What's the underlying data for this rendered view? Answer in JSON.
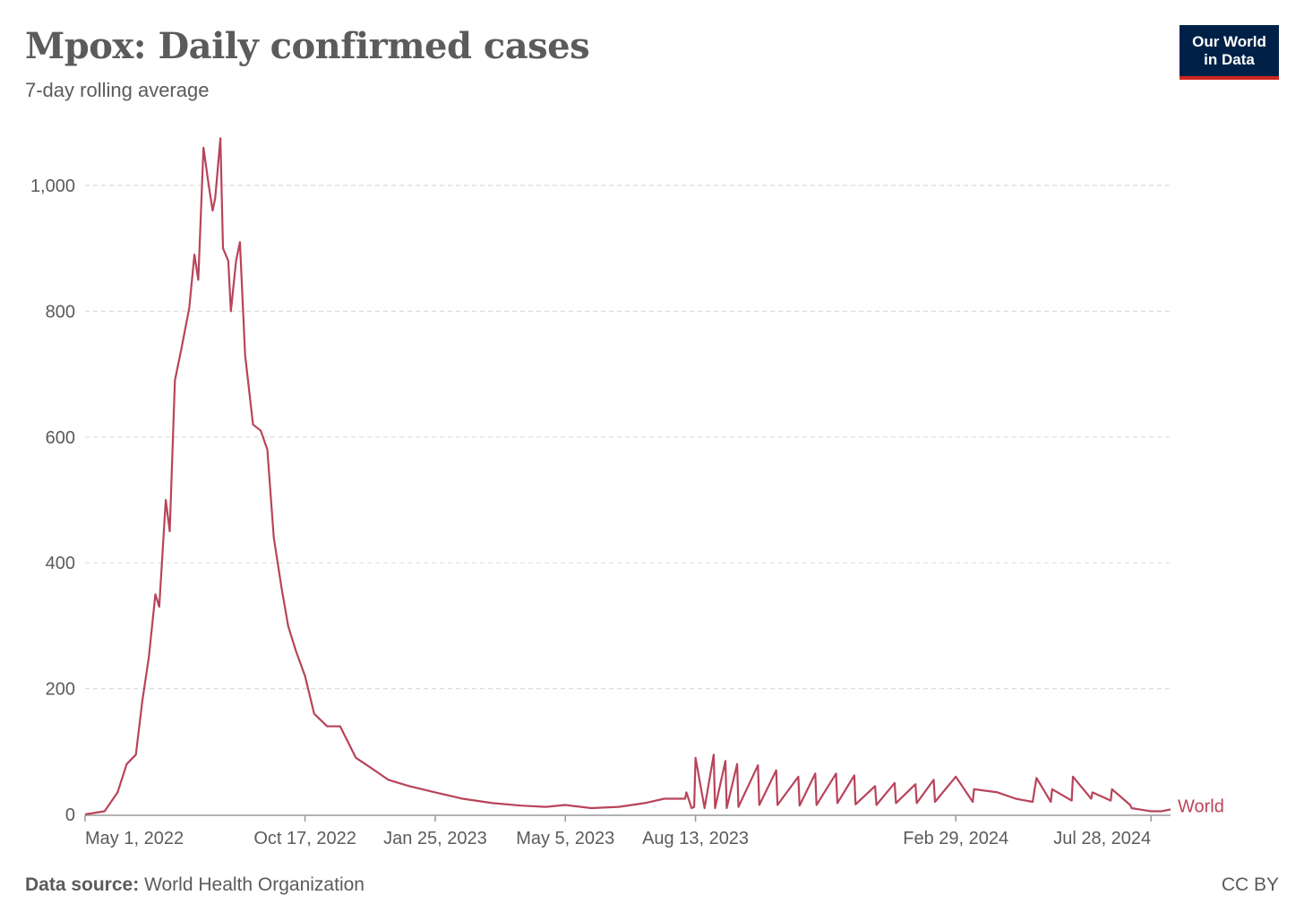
{
  "header": {
    "title": "Mpox: Daily confirmed cases",
    "subtitle": "7-day rolling average",
    "logo_line1": "Our World",
    "logo_line2": "in Data"
  },
  "footer": {
    "source_label": "Data source:",
    "source_value": "World Health Organization",
    "license": "CC BY"
  },
  "colors": {
    "series": "#b84459",
    "grid": "#dddddd",
    "axis_text": "#5b5b5b",
    "logo_bg": "#002147",
    "logo_accent": "#ce261e"
  },
  "chart_data": {
    "type": "line",
    "title": "Mpox: Daily confirmed cases",
    "subtitle": "7-day rolling average",
    "xlabel": "",
    "ylabel": "",
    "ylim": [
      0,
      1000
    ],
    "yticks": [
      0,
      200,
      400,
      600,
      800,
      1000
    ],
    "ytick_labels": [
      "0",
      "200",
      "400",
      "600",
      "800",
      "1,000"
    ],
    "xlim": [
      "2022-05-01",
      "2024-08-12"
    ],
    "xticks": [
      "2022-05-01",
      "2022-10-17",
      "2023-01-25",
      "2023-05-05",
      "2023-08-13",
      "2024-02-29",
      "2024-07-28"
    ],
    "xtick_labels": [
      "May 1, 2022",
      "Oct 17, 2022",
      "Jan 25, 2023",
      "May 5, 2023",
      "Aug 13, 2023",
      "Feb 29, 2024",
      "Jul 28, 2024"
    ],
    "grid": "horizontal dashed",
    "legend": "end-of-line label",
    "series": [
      {
        "name": "World",
        "x": [
          "2022-05-01",
          "2022-05-16",
          "2022-05-26",
          "2022-06-02",
          "2022-06-09",
          "2022-06-14",
          "2022-06-19",
          "2022-06-24",
          "2022-06-27",
          "2022-07-02",
          "2022-07-05",
          "2022-07-09",
          "2022-07-14",
          "2022-07-20",
          "2022-07-24",
          "2022-07-27",
          "2022-07-31",
          "2022-08-04",
          "2022-08-07",
          "2022-08-09",
          "2022-08-13",
          "2022-08-15",
          "2022-08-19",
          "2022-08-21",
          "2022-08-25",
          "2022-08-28",
          "2022-09-01",
          "2022-09-07",
          "2022-09-13",
          "2022-09-18",
          "2022-09-23",
          "2022-09-29",
          "2022-10-04",
          "2022-10-10",
          "2022-10-17",
          "2022-10-24",
          "2022-11-03",
          "2022-11-13",
          "2022-11-25",
          "2022-12-06",
          "2022-12-20",
          "2023-01-05",
          "2023-01-25",
          "2023-02-15",
          "2023-03-10",
          "2023-04-01",
          "2023-04-20",
          "2023-05-05",
          "2023-05-25",
          "2023-06-15",
          "2023-07-05",
          "2023-07-20",
          "2023-08-05",
          "2023-08-06",
          "2023-08-10",
          "2023-08-12",
          "2023-08-13",
          "2023-08-20",
          "2023-08-27",
          "2023-08-28",
          "2023-09-05",
          "2023-09-06",
          "2023-09-14",
          "2023-09-15",
          "2023-09-30",
          "2023-10-01",
          "2023-10-14",
          "2023-10-15",
          "2023-10-31",
          "2023-11-01",
          "2023-11-13",
          "2023-11-14",
          "2023-11-29",
          "2023-11-30",
          "2023-12-13",
          "2023-12-14",
          "2023-12-29",
          "2023-12-30",
          "2024-01-13",
          "2024-01-14",
          "2024-01-29",
          "2024-01-30",
          "2024-02-12",
          "2024-02-13",
          "2024-02-29",
          "2024-03-13",
          "2024-03-14",
          "2024-04-01",
          "2024-04-15",
          "2024-04-28",
          "2024-05-01",
          "2024-05-12",
          "2024-05-13",
          "2024-05-28",
          "2024-05-29",
          "2024-06-12",
          "2024-06-13",
          "2024-06-27",
          "2024-06-28",
          "2024-07-12",
          "2024-07-13",
          "2024-07-28",
          "2024-08-05",
          "2024-08-12"
        ],
        "y": [
          0,
          5,
          35,
          80,
          95,
          180,
          250,
          350,
          330,
          500,
          450,
          690,
          740,
          805,
          890,
          850,
          1060,
          1000,
          960,
          980,
          1075,
          900,
          880,
          800,
          880,
          910,
          730,
          620,
          610,
          580,
          440,
          360,
          300,
          260,
          220,
          160,
          140,
          140,
          90,
          75,
          55,
          45,
          35,
          25,
          18,
          14,
          12,
          15,
          10,
          12,
          18,
          25,
          25,
          35,
          10,
          12,
          90,
          10,
          95,
          10,
          85,
          10,
          80,
          12,
          78,
          15,
          70,
          15,
          60,
          14,
          65,
          15,
          65,
          18,
          62,
          16,
          45,
          15,
          50,
          18,
          48,
          18,
          55,
          20,
          60,
          20,
          40,
          35,
          25,
          20,
          58,
          20,
          40,
          22,
          60,
          25,
          35,
          22,
          40,
          15,
          10,
          5,
          5,
          8
        ]
      }
    ]
  }
}
